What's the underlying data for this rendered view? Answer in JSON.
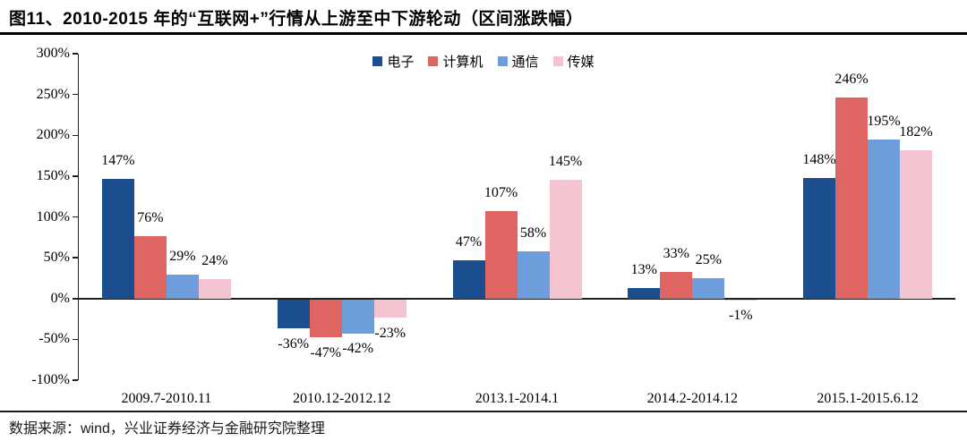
{
  "title": "图11、2010-2015 年的“互联网+”行情从上游至中下游轮动（区间涨跌幅）",
  "footer": "数据来源：wind，兴业证券经济与金融研究院整理",
  "chart_data": {
    "type": "bar",
    "title": "图11、2010-2015 年的“互联网+”行情从上游至中下游轮动（区间涨跌幅）",
    "categories": [
      "2009.7-2010.11",
      "2010.12-2012.12",
      "2013.1-2014.1",
      "2014.2-2014.12",
      "2015.1-2015.6.12"
    ],
    "series": [
      {
        "name": "电子",
        "color": "#1A4E8F",
        "values": [
          147,
          -36,
          47,
          13,
          148
        ]
      },
      {
        "name": "计算机",
        "color": "#DF6562",
        "values": [
          76,
          -47,
          107,
          33,
          246
        ]
      },
      {
        "name": "通信",
        "color": "#6D9DDB",
        "values": [
          29,
          -42,
          58,
          25,
          195
        ]
      },
      {
        "name": "传媒",
        "color": "#F5C4D1",
        "values": [
          24,
          -23,
          145,
          -1,
          182
        ]
      }
    ],
    "yticks": [
      "300%",
      "250%",
      "200%",
      "150%",
      "100%",
      "50%",
      "0%",
      "-50%",
      "-100%"
    ],
    "ylim": [
      -100,
      300
    ],
    "grid": false,
    "legend_position": "top-center",
    "bar_label_format": "{value}%",
    "xlabel": "",
    "ylabel": ""
  }
}
